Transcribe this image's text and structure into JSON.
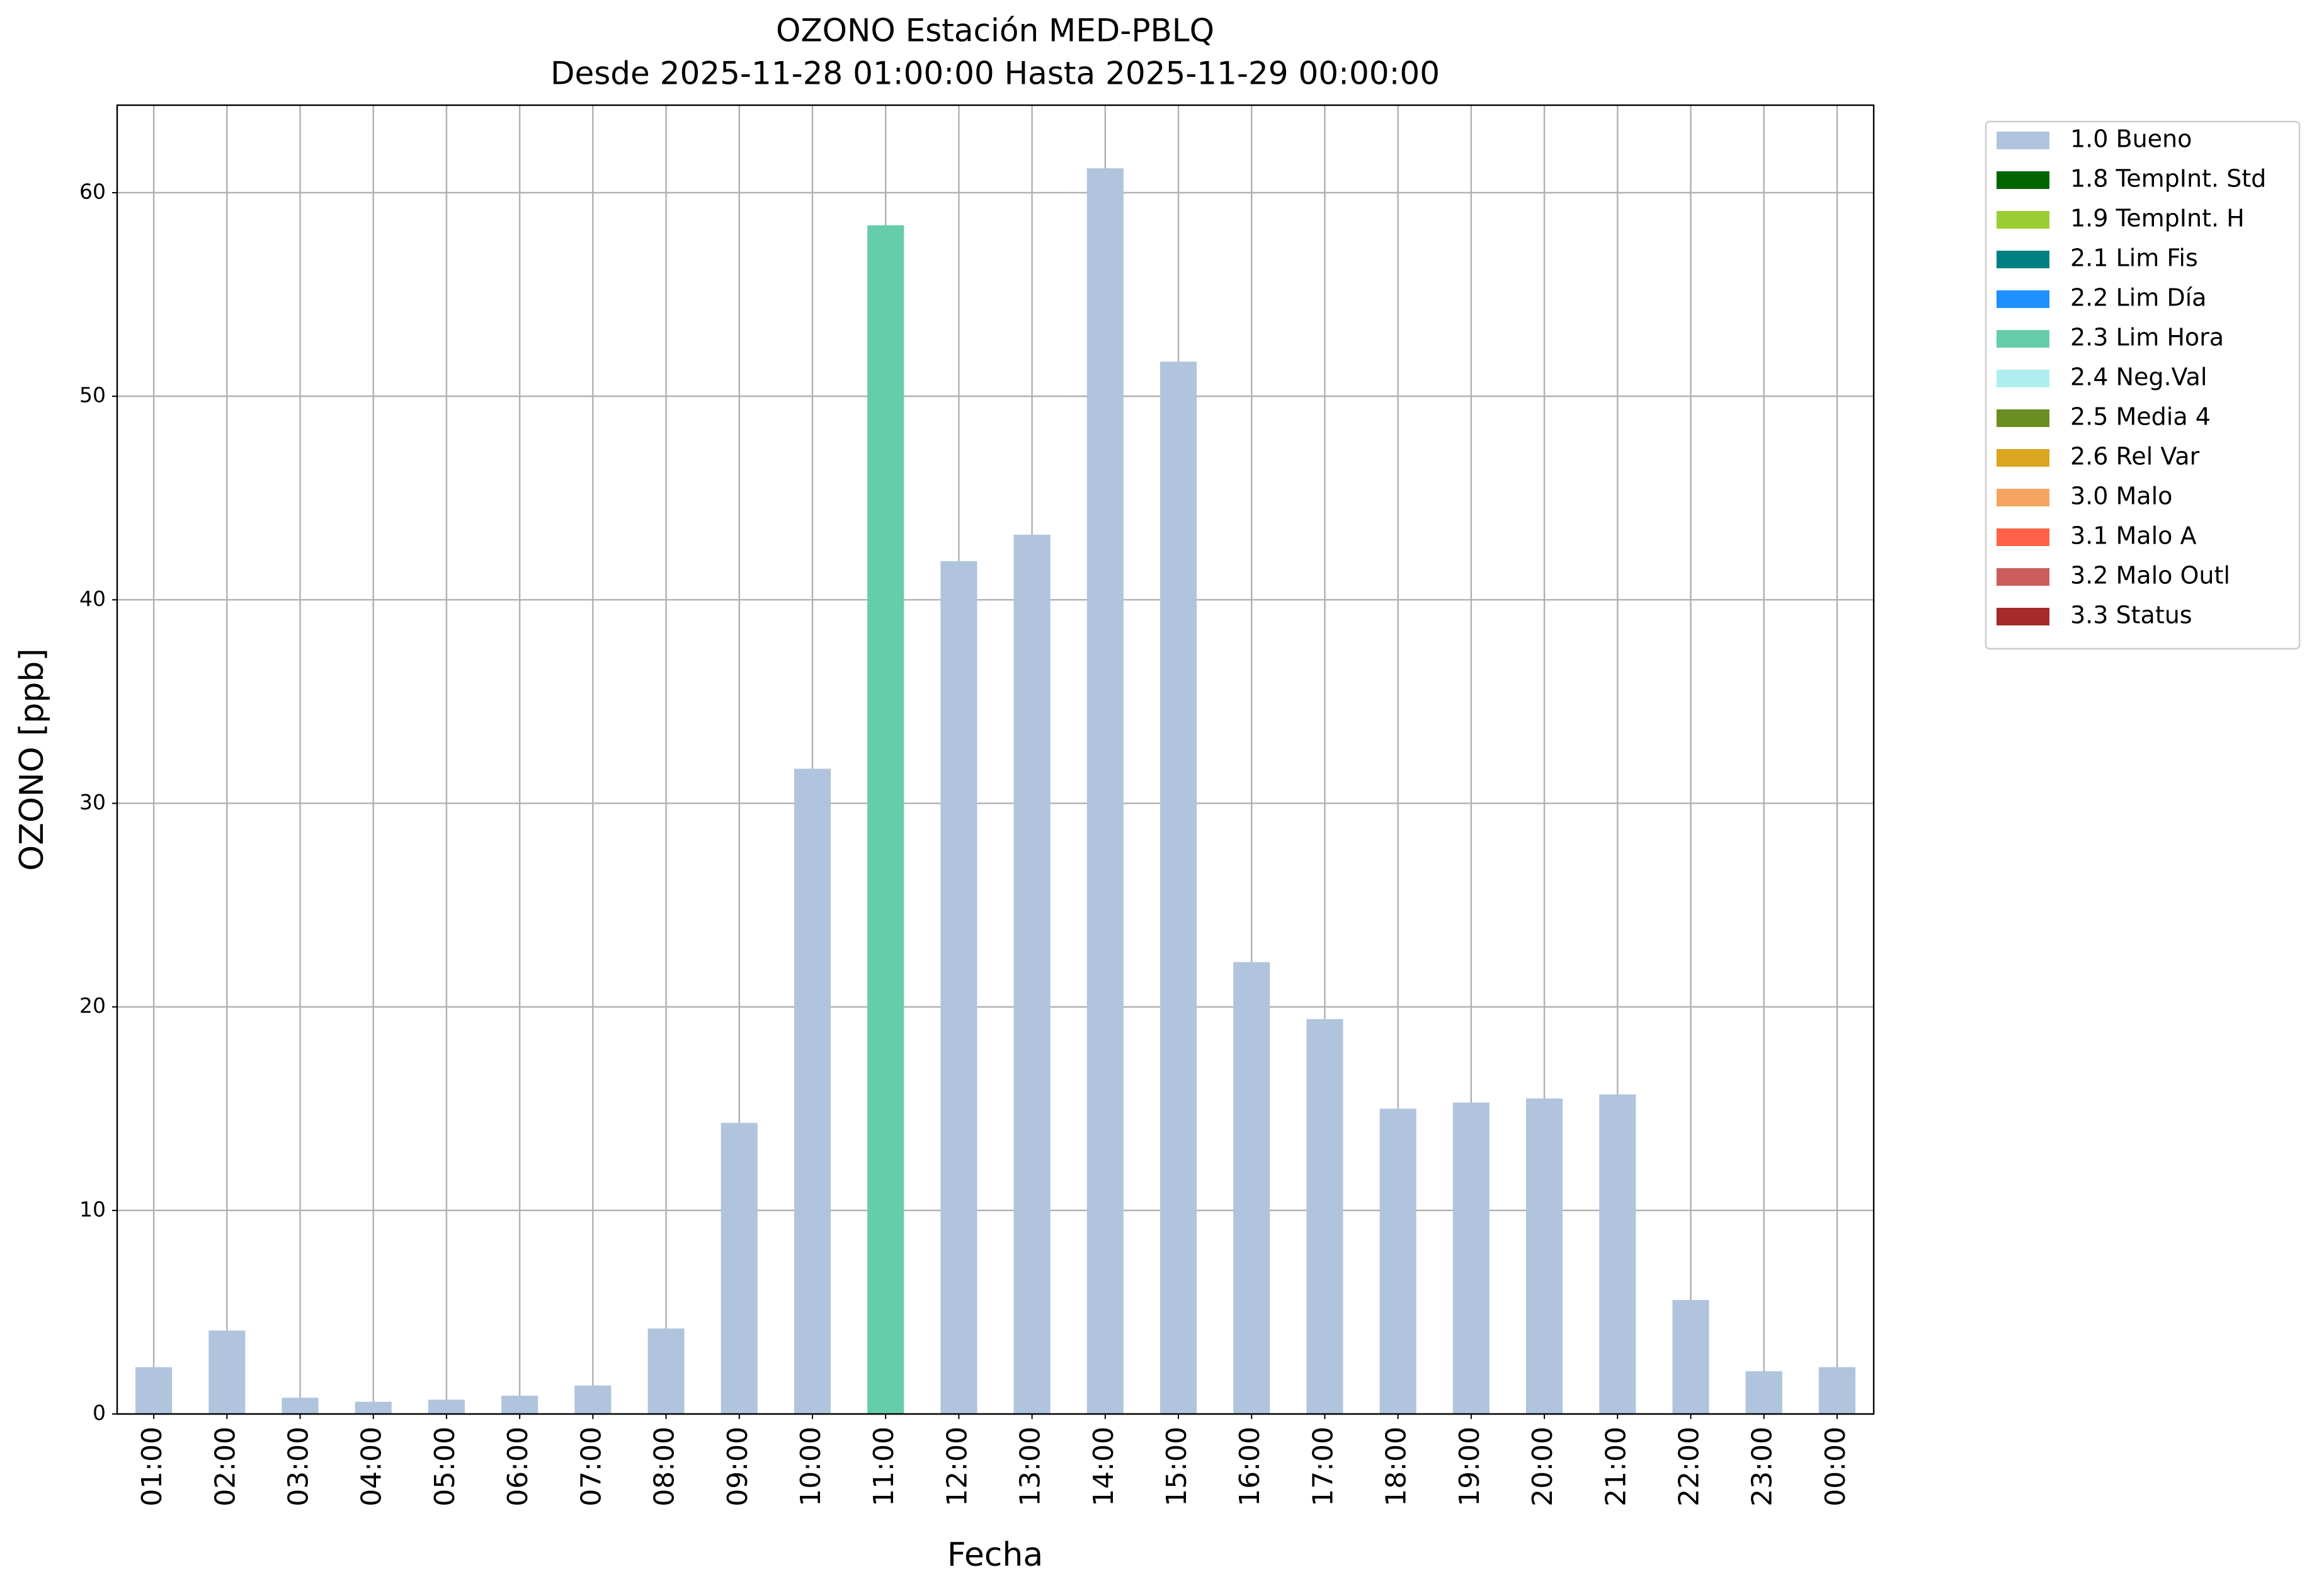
{
  "chart_data": {
    "type": "bar",
    "stacked": true,
    "title": "OZONO Estación MED-PBLQ",
    "subtitle": "Desde 2025-11-28 01:00:00 Hasta 2025-11-29 00:00:00",
    "x_label": "Fecha",
    "y_label": "OZONO [ppb]",
    "categories": [
      "01:00",
      "02:00",
      "03:00",
      "04:00",
      "05:00",
      "06:00",
      "07:00",
      "08:00",
      "09:00",
      "10:00",
      "11:00",
      "12:00",
      "13:00",
      "14:00",
      "15:00",
      "16:00",
      "17:00",
      "18:00",
      "19:00",
      "20:00",
      "21:00",
      "22:00",
      "23:00",
      "00:00"
    ],
    "ylim": [
      0,
      64.3
    ],
    "yticks": [
      0,
      10,
      20,
      30,
      40,
      50,
      60
    ],
    "grid": true,
    "legend": "outside-upper-right",
    "series": [
      {
        "name": "1.0 Bueno",
        "color": "#b0c4de",
        "values": [
          2.3,
          4.1,
          0.8,
          0.6,
          0.7,
          0.9,
          1.4,
          4.2,
          14.3,
          31.7,
          null,
          41.9,
          43.2,
          61.2,
          51.7,
          22.2,
          19.4,
          15.0,
          15.3,
          15.5,
          15.7,
          5.6,
          2.1,
          2.3
        ]
      },
      {
        "name": "1.8 TempInt. Std",
        "color": "#006400",
        "values": [
          null,
          null,
          null,
          null,
          null,
          null,
          null,
          null,
          null,
          null,
          null,
          null,
          null,
          null,
          null,
          null,
          null,
          null,
          null,
          null,
          null,
          null,
          null,
          null
        ]
      },
      {
        "name": "1.9 TempInt. H",
        "color": "#9acd32",
        "values": [
          null,
          null,
          null,
          null,
          null,
          null,
          null,
          null,
          null,
          null,
          null,
          null,
          null,
          null,
          null,
          null,
          null,
          null,
          null,
          null,
          null,
          null,
          null,
          null
        ]
      },
      {
        "name": "2.1 Lim Fis",
        "color": "#008080",
        "values": [
          null,
          null,
          null,
          null,
          null,
          null,
          null,
          null,
          null,
          null,
          null,
          null,
          null,
          null,
          null,
          null,
          null,
          null,
          null,
          null,
          null,
          null,
          null,
          null
        ]
      },
      {
        "name": "2.2 Lim Día",
        "color": "#1e90ff",
        "values": [
          null,
          null,
          null,
          null,
          null,
          null,
          null,
          null,
          null,
          null,
          null,
          null,
          null,
          null,
          null,
          null,
          null,
          null,
          null,
          null,
          null,
          null,
          null,
          null
        ]
      },
      {
        "name": "2.3 Lim Hora",
        "color": "#66cdaa",
        "values": [
          null,
          null,
          null,
          null,
          null,
          null,
          null,
          null,
          null,
          null,
          58.4,
          null,
          null,
          null,
          null,
          null,
          null,
          null,
          null,
          null,
          null,
          null,
          null,
          null
        ]
      },
      {
        "name": "2.4 Neg.Val",
        "color": "#afeeee",
        "values": [
          null,
          null,
          null,
          null,
          null,
          null,
          null,
          null,
          null,
          null,
          null,
          null,
          null,
          null,
          null,
          null,
          null,
          null,
          null,
          null,
          null,
          null,
          null,
          null
        ]
      },
      {
        "name": "2.5 Media 4",
        "color": "#6b8e23",
        "values": [
          null,
          null,
          null,
          null,
          null,
          null,
          null,
          null,
          null,
          null,
          null,
          null,
          null,
          null,
          null,
          null,
          null,
          null,
          null,
          null,
          null,
          null,
          null,
          null
        ]
      },
      {
        "name": "2.6 Rel Var",
        "color": "#daa520",
        "values": [
          null,
          null,
          null,
          null,
          null,
          null,
          null,
          null,
          null,
          null,
          null,
          null,
          null,
          null,
          null,
          null,
          null,
          null,
          null,
          null,
          null,
          null,
          null,
          null
        ]
      },
      {
        "name": "3.0 Malo",
        "color": "#f4a460",
        "values": [
          null,
          null,
          null,
          null,
          null,
          null,
          null,
          null,
          null,
          null,
          null,
          null,
          null,
          null,
          null,
          null,
          null,
          null,
          null,
          null,
          null,
          null,
          null,
          null
        ]
      },
      {
        "name": "3.1 Malo A",
        "color": "#ff6347",
        "values": [
          null,
          null,
          null,
          null,
          null,
          null,
          null,
          null,
          null,
          null,
          null,
          null,
          null,
          null,
          null,
          null,
          null,
          null,
          null,
          null,
          null,
          null,
          null,
          null
        ]
      },
      {
        "name": "3.2 Malo Outl",
        "color": "#cd5c5c",
        "values": [
          null,
          null,
          null,
          null,
          null,
          null,
          null,
          null,
          null,
          null,
          null,
          null,
          null,
          null,
          null,
          null,
          null,
          null,
          null,
          null,
          null,
          null,
          null,
          null
        ]
      },
      {
        "name": "3.3 Status",
        "color": "#a52a2a",
        "values": [
          null,
          null,
          null,
          null,
          null,
          null,
          null,
          null,
          null,
          null,
          null,
          null,
          null,
          null,
          null,
          null,
          null,
          null,
          null,
          null,
          null,
          null,
          null,
          null
        ]
      }
    ]
  }
}
